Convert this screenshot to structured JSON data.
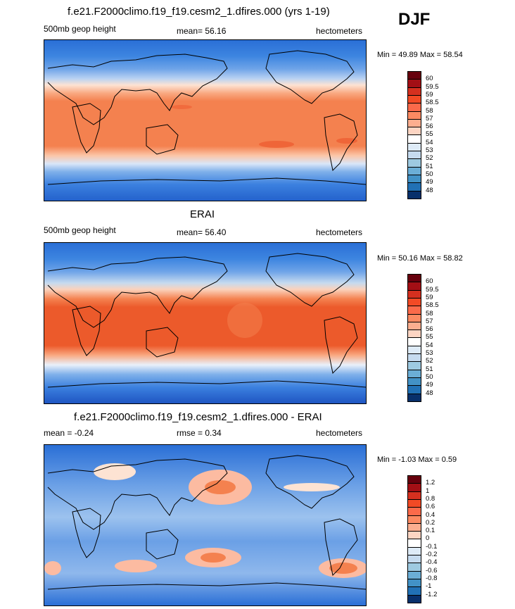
{
  "season": "DJF",
  "panels": [
    {
      "title": "f.e21.F2000climo.f19_f19.cesm2_1.dfires.000 (yrs 1-19)",
      "left_label": "500mb geop height",
      "center_label": "mean=  56.16",
      "right_label": "hectometers",
      "minmax": "Min =  49.89 Max =  58.54",
      "colorbar": {
        "colors": [
          "#67000d",
          "#a30f15",
          "#d5301f",
          "#f24a25",
          "#fb6a4a",
          "#fc9070",
          "#fcbba1",
          "#fee0d2",
          "#ffffff",
          "#deebf7",
          "#c6dbef",
          "#9ecae1",
          "#6baed6",
          "#4292c6",
          "#2171b5",
          "#08519c",
          "#08306b"
        ],
        "labels": [
          "60",
          "59.5",
          "59",
          "58.5",
          "58",
          "57",
          "56",
          "55",
          "54",
          "53",
          "52",
          "51",
          "50",
          "49",
          "48"
        ]
      }
    },
    {
      "title": "ERAI",
      "left_label": "500mb geop height",
      "center_label": "mean=  56.40",
      "right_label": "hectometers",
      "minmax": "Min =  50.16 Max =  58.82",
      "colorbar": {
        "colors": [
          "#67000d",
          "#a30f15",
          "#d5301f",
          "#f24a25",
          "#fb6a4a",
          "#fc9070",
          "#fcbba1",
          "#fee0d2",
          "#ffffff",
          "#deebf7",
          "#c6dbef",
          "#9ecae1",
          "#6baed6",
          "#4292c6",
          "#2171b5",
          "#08519c",
          "#08306b"
        ],
        "labels": [
          "60",
          "59.5",
          "59",
          "58.5",
          "58",
          "57",
          "56",
          "55",
          "54",
          "53",
          "52",
          "51",
          "50",
          "49",
          "48"
        ]
      }
    },
    {
      "title": "f.e21.F2000climo.f19_f19.cesm2_1.dfires.000 - ERAI",
      "left_label": "mean =  -0.24",
      "center_label": "rmse =   0.34",
      "right_label": "hectometers",
      "minmax": "Min =  -1.03 Max =   0.59",
      "colorbar": {
        "colors": [
          "#67000d",
          "#a30f15",
          "#d5301f",
          "#f24a25",
          "#fb6a4a",
          "#fc9070",
          "#fcbba1",
          "#fee0d2",
          "#ffffff",
          "#deebf7",
          "#c6dbef",
          "#9ecae1",
          "#6baed6",
          "#4292c6",
          "#2171b5",
          "#08519c",
          "#08306b"
        ],
        "labels": [
          "1.2",
          "1",
          "0.8",
          "0.6",
          "0.4",
          "0.2",
          "0.1",
          "0",
          "-0.1",
          "-0.2",
          "-0.4",
          "-0.6",
          "-0.8",
          "-1",
          "-1.2"
        ]
      }
    }
  ]
}
